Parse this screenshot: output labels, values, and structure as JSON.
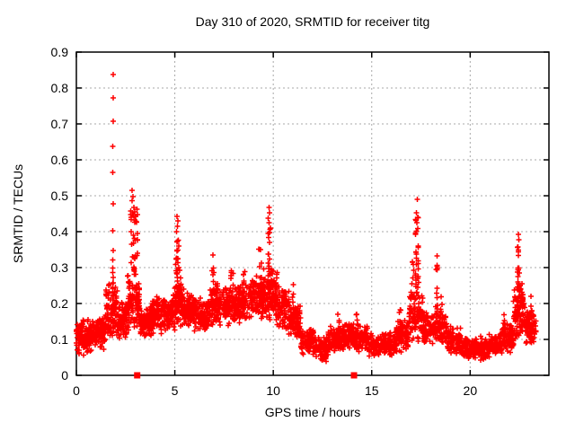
{
  "chart_data": {
    "type": "scatter",
    "title": "Day 310 of 2020, SRMTID for receiver titg",
    "xlabel": "GPS time / hours",
    "ylabel": "SRMTID / TECUs",
    "xlim": [
      0,
      24
    ],
    "ylim": [
      0,
      0.9
    ],
    "grid": true,
    "legend": "none",
    "xticks": [
      {
        "v": 0,
        "label": "0"
      },
      {
        "v": 5,
        "label": "5"
      },
      {
        "v": 10,
        "label": "10"
      },
      {
        "v": 15,
        "label": "15"
      },
      {
        "v": 20,
        "label": "20"
      }
    ],
    "yticks": [
      {
        "v": 0.0,
        "label": "0"
      },
      {
        "v": 0.1,
        "label": "0.1"
      },
      {
        "v": 0.2,
        "label": "0.2"
      },
      {
        "v": 0.3,
        "label": "0.3"
      },
      {
        "v": 0.4,
        "label": "0.4"
      },
      {
        "v": 0.5,
        "label": "0.5"
      },
      {
        "v": 0.6,
        "label": "0.6"
      },
      {
        "v": 0.7,
        "label": "0.7"
      },
      {
        "v": 0.8,
        "label": "0.8"
      },
      {
        "v": 0.9,
        "label": "0.9"
      }
    ],
    "colors": {
      "frame": "#000000",
      "grid": "#a8a8a8",
      "text": "#000000"
    },
    "marker": {
      "glyph": "+",
      "color": "#ff0000",
      "size": 7
    },
    "zero_marker_style": "filled-square",
    "series": {
      "extreme_points_format": "[x_hours, y_tecus]",
      "extreme_points": [
        [
          1.86,
          0.838
        ],
        [
          1.87,
          0.772
        ],
        [
          1.86,
          0.708
        ],
        [
          1.85,
          0.638
        ],
        [
          1.84,
          0.565
        ],
        [
          1.86,
          0.478
        ],
        [
          1.85,
          0.402
        ],
        [
          1.87,
          0.347
        ],
        [
          2.82,
          0.515
        ],
        [
          2.88,
          0.498
        ],
        [
          2.84,
          0.486
        ],
        [
          2.91,
          0.468
        ],
        [
          2.86,
          0.452
        ],
        [
          2.79,
          0.44
        ],
        [
          5.11,
          0.442
        ],
        [
          5.16,
          0.43
        ],
        [
          5.13,
          0.415
        ],
        [
          5.09,
          0.4
        ],
        [
          9.78,
          0.468
        ],
        [
          9.81,
          0.452
        ],
        [
          9.75,
          0.438
        ],
        [
          9.79,
          0.425
        ],
        [
          17.31,
          0.49
        ],
        [
          17.28,
          0.453
        ],
        [
          17.33,
          0.44
        ],
        [
          22.44,
          0.393
        ],
        [
          22.47,
          0.377
        ],
        [
          22.42,
          0.358
        ],
        [
          6.93,
          0.335
        ],
        [
          18.31,
          0.333
        ],
        [
          11.02,
          0.252
        ],
        [
          23.08,
          0.22
        ]
      ],
      "spike_columns_format": "[x_center_hours, x_width_hours, y_min, y_max, n_points]",
      "spike_columns": [
        [
          1.86,
          0.05,
          0.2,
          0.33,
          14
        ],
        [
          2.9,
          0.3,
          0.28,
          0.46,
          26
        ],
        [
          3.05,
          0.12,
          0.32,
          0.5,
          10
        ],
        [
          5.13,
          0.16,
          0.24,
          0.4,
          26
        ],
        [
          5.3,
          0.1,
          0.2,
          0.3,
          8
        ],
        [
          6.95,
          0.14,
          0.19,
          0.31,
          14
        ],
        [
          7.15,
          0.1,
          0.18,
          0.28,
          8
        ],
        [
          7.9,
          0.12,
          0.18,
          0.3,
          10
        ],
        [
          8.5,
          0.15,
          0.18,
          0.29,
          10
        ],
        [
          9.3,
          0.2,
          0.2,
          0.36,
          18
        ],
        [
          9.8,
          0.15,
          0.22,
          0.42,
          24
        ],
        [
          10.15,
          0.12,
          0.18,
          0.3,
          12
        ],
        [
          10.5,
          0.1,
          0.15,
          0.25,
          8
        ],
        [
          11.0,
          0.1,
          0.14,
          0.24,
          8
        ],
        [
          13.3,
          0.1,
          0.11,
          0.18,
          8
        ],
        [
          14.25,
          0.1,
          0.1,
          0.17,
          8
        ],
        [
          16.45,
          0.1,
          0.09,
          0.19,
          8
        ],
        [
          17.3,
          0.16,
          0.2,
          0.44,
          30
        ],
        [
          17.1,
          0.12,
          0.16,
          0.32,
          12
        ],
        [
          18.3,
          0.12,
          0.16,
          0.31,
          16
        ],
        [
          18.55,
          0.1,
          0.12,
          0.22,
          8
        ],
        [
          21.7,
          0.1,
          0.09,
          0.17,
          8
        ],
        [
          22.45,
          0.12,
          0.2,
          0.36,
          24
        ],
        [
          22.6,
          0.2,
          0.13,
          0.27,
          16
        ],
        [
          23.1,
          0.12,
          0.09,
          0.2,
          12
        ]
      ],
      "baseline_band_format": "[x_start_hours, x_end_hours, y_low, y_high, n_points]",
      "baseline_band": [
        [
          0.0,
          0.5,
          0.05,
          0.16,
          80
        ],
        [
          0.5,
          1.0,
          0.06,
          0.16,
          85
        ],
        [
          1.0,
          1.5,
          0.07,
          0.17,
          85
        ],
        [
          1.5,
          2.1,
          0.08,
          0.26,
          100
        ],
        [
          2.1,
          2.6,
          0.1,
          0.21,
          85
        ],
        [
          2.6,
          3.2,
          0.11,
          0.3,
          100
        ],
        [
          3.2,
          3.8,
          0.1,
          0.2,
          85
        ],
        [
          3.8,
          4.4,
          0.11,
          0.22,
          90
        ],
        [
          4.4,
          5.0,
          0.12,
          0.23,
          90
        ],
        [
          5.0,
          5.5,
          0.13,
          0.26,
          85
        ],
        [
          5.5,
          6.1,
          0.12,
          0.23,
          90
        ],
        [
          6.1,
          6.7,
          0.12,
          0.22,
          90
        ],
        [
          6.7,
          7.4,
          0.13,
          0.26,
          95
        ],
        [
          7.4,
          8.1,
          0.13,
          0.25,
          95
        ],
        [
          8.1,
          8.8,
          0.14,
          0.26,
          95
        ],
        [
          8.8,
          9.5,
          0.15,
          0.28,
          95
        ],
        [
          9.5,
          10.1,
          0.15,
          0.3,
          90
        ],
        [
          10.1,
          10.8,
          0.12,
          0.25,
          90
        ],
        [
          10.8,
          11.4,
          0.1,
          0.2,
          90
        ],
        [
          11.4,
          12.1,
          0.055,
          0.14,
          90
        ],
        [
          12.1,
          12.8,
          0.035,
          0.12,
          90
        ],
        [
          12.8,
          13.5,
          0.06,
          0.14,
          90
        ],
        [
          13.5,
          14.1,
          0.07,
          0.15,
          85
        ],
        [
          14.1,
          14.8,
          0.06,
          0.14,
          85
        ],
        [
          14.8,
          15.5,
          0.05,
          0.12,
          85
        ],
        [
          15.5,
          16.2,
          0.05,
          0.13,
          85
        ],
        [
          16.2,
          16.9,
          0.06,
          0.16,
          85
        ],
        [
          16.9,
          17.6,
          0.09,
          0.24,
          85
        ],
        [
          17.6,
          18.2,
          0.08,
          0.18,
          75
        ],
        [
          18.2,
          18.8,
          0.08,
          0.18,
          75
        ],
        [
          18.8,
          19.5,
          0.055,
          0.14,
          85
        ],
        [
          19.5,
          20.2,
          0.045,
          0.11,
          85
        ],
        [
          20.2,
          20.9,
          0.04,
          0.11,
          85
        ],
        [
          20.9,
          21.6,
          0.05,
          0.12,
          85
        ],
        [
          21.6,
          22.2,
          0.06,
          0.15,
          85
        ],
        [
          22.2,
          22.8,
          0.09,
          0.25,
          85
        ],
        [
          22.8,
          23.35,
          0.08,
          0.19,
          80
        ]
      ],
      "zero_markers": [
        {
          "x": 3.09,
          "y": 0
        },
        {
          "x": 14.1,
          "y": 0
        }
      ]
    }
  }
}
